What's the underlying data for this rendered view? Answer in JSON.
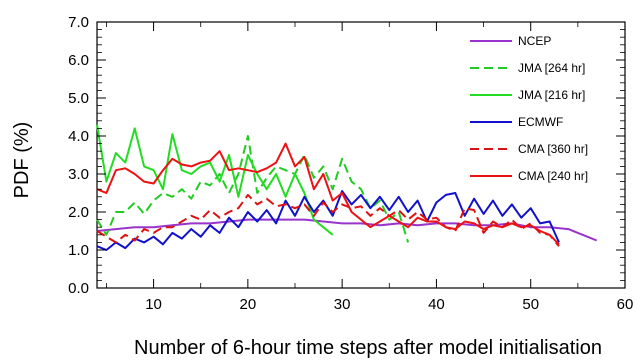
{
  "chart_data": {
    "type": "line",
    "title": "",
    "xlabel": "Number of 6-hour time steps after model initialisation",
    "ylabel": "PDF (%)",
    "xlim": [
      4,
      60
    ],
    "ylim": [
      0,
      7
    ],
    "xticks": [
      10,
      20,
      30,
      40,
      50,
      60
    ],
    "yticks": [
      0,
      1,
      2,
      3,
      4,
      5,
      6,
      7
    ],
    "xtick_labels": [
      "10",
      "20",
      "30",
      "40",
      "50",
      "60"
    ],
    "ytick_labels": [
      "0.0",
      "1.0",
      "2.0",
      "3.0",
      "4.0",
      "5.0",
      "6.0",
      "7.0"
    ],
    "grid": false,
    "legend_position": "top-right",
    "series": [
      {
        "name": "NCEP",
        "color": "#9933cc",
        "dash": "solid",
        "x": [
          4,
          6,
          8,
          10,
          12,
          14,
          16,
          18,
          20,
          22,
          24,
          26,
          28,
          30,
          32,
          34,
          36,
          38,
          40,
          42,
          44,
          46,
          48,
          50,
          52,
          54,
          55,
          56,
          57
        ],
        "y": [
          1.5,
          1.55,
          1.6,
          1.6,
          1.65,
          1.7,
          1.7,
          1.75,
          1.8,
          1.8,
          1.8,
          1.8,
          1.75,
          1.7,
          1.7,
          1.65,
          1.7,
          1.65,
          1.7,
          1.7,
          1.65,
          1.65,
          1.7,
          1.6,
          1.6,
          1.55,
          1.45,
          1.35,
          1.25
        ]
      },
      {
        "name": "JMA [264 hr]",
        "color": "#22cc22",
        "dash": "dashed",
        "x": [
          4,
          5,
          6,
          7,
          8,
          9,
          10,
          11,
          12,
          13,
          14,
          15,
          16,
          17,
          18,
          19,
          20,
          21,
          22,
          23,
          24,
          25,
          26,
          27,
          28,
          29,
          30,
          31,
          32,
          33,
          34,
          35,
          36,
          37
        ],
        "y": [
          1.8,
          1.4,
          2.0,
          2.0,
          2.25,
          1.95,
          2.3,
          2.5,
          2.4,
          2.6,
          2.35,
          2.8,
          2.7,
          3.0,
          2.5,
          3.0,
          4.0,
          2.5,
          2.9,
          3.2,
          3.1,
          3.0,
          3.5,
          2.9,
          3.2,
          2.6,
          3.4,
          2.8,
          2.6,
          2.1,
          2.3,
          1.8,
          2.0,
          1.2
        ]
      },
      {
        "name": "JMA [216 hr]",
        "color": "#22dd22",
        "dash": "solid",
        "x": [
          4,
          5,
          6,
          7,
          8,
          9,
          10,
          11,
          12,
          13,
          14,
          15,
          16,
          17,
          18,
          19,
          20,
          21,
          22,
          23,
          24,
          25,
          26,
          27,
          28,
          29
        ],
        "y": [
          4.3,
          2.8,
          3.55,
          3.3,
          4.2,
          3.2,
          3.1,
          2.6,
          4.05,
          3.1,
          3.0,
          3.2,
          3.3,
          2.8,
          3.5,
          2.4,
          3.5,
          3.0,
          2.6,
          3.0,
          2.4,
          3.0,
          2.5,
          1.8,
          1.6,
          1.4
        ]
      },
      {
        "name": "ECMWF",
        "color": "#1111cc",
        "dash": "solid",
        "x": [
          4,
          5,
          6,
          7,
          8,
          9,
          10,
          11,
          12,
          13,
          14,
          15,
          16,
          17,
          18,
          19,
          20,
          21,
          22,
          23,
          24,
          25,
          26,
          27,
          28,
          29,
          30,
          31,
          32,
          33,
          34,
          35,
          36,
          37,
          38,
          39,
          40,
          41,
          42,
          43,
          44,
          45,
          46,
          47,
          48,
          49,
          50,
          51,
          52,
          53
        ],
        "y": [
          1.1,
          1.0,
          1.2,
          1.05,
          1.3,
          1.2,
          1.35,
          1.15,
          1.45,
          1.3,
          1.55,
          1.35,
          1.65,
          1.45,
          1.85,
          1.6,
          2.0,
          1.75,
          2.05,
          1.7,
          2.3,
          1.9,
          2.4,
          2.0,
          2.3,
          1.9,
          2.55,
          2.2,
          2.45,
          2.1,
          2.4,
          2.05,
          2.4,
          2.0,
          2.3,
          1.75,
          2.25,
          2.45,
          2.5,
          1.9,
          2.35,
          1.95,
          2.3,
          1.9,
          2.2,
          1.85,
          2.1,
          1.7,
          1.75,
          1.2
        ]
      },
      {
        "name": "CMA [360 hr]",
        "color": "#dd1111",
        "dash": "dashed",
        "x": [
          4,
          5,
          6,
          7,
          8,
          9,
          10,
          11,
          12,
          13,
          14,
          15,
          16,
          17,
          18,
          19,
          20,
          21,
          22,
          23,
          24,
          25,
          26,
          27,
          28,
          29,
          30,
          31,
          32,
          33,
          34,
          35,
          36,
          37,
          38,
          39,
          40,
          41,
          42,
          43,
          44,
          45,
          46,
          47,
          48,
          49,
          50,
          51,
          52,
          53
        ],
        "y": [
          1.5,
          1.35,
          1.2,
          1.4,
          1.25,
          1.55,
          1.45,
          1.6,
          1.6,
          1.75,
          1.9,
          1.8,
          2.05,
          1.85,
          2.0,
          2.1,
          2.45,
          2.2,
          2.35,
          2.15,
          2.2,
          2.1,
          2.2,
          1.9,
          2.25,
          2.0,
          2.2,
          2.1,
          2.15,
          1.9,
          2.1,
          1.9,
          2.05,
          1.8,
          2.0,
          1.8,
          1.85,
          1.6,
          1.5,
          2.1,
          2.05,
          1.45,
          1.75,
          1.6,
          1.8,
          1.55,
          1.7,
          1.45,
          1.4,
          1.1
        ]
      },
      {
        "name": "CMA [240 hr]",
        "color": "#ee1111",
        "dash": "solid",
        "x": [
          4,
          5,
          6,
          7,
          8,
          9,
          10,
          11,
          12,
          13,
          14,
          15,
          16,
          17,
          18,
          19,
          20,
          21,
          22,
          23,
          24,
          25,
          26,
          27,
          28,
          29,
          30,
          31,
          32,
          33,
          34,
          35,
          36,
          37,
          38,
          39,
          40,
          41,
          42,
          43,
          44,
          45,
          46,
          47,
          48,
          49,
          50,
          51,
          52,
          53
        ],
        "y": [
          2.6,
          2.5,
          3.1,
          3.15,
          3.0,
          2.8,
          2.75,
          3.1,
          3.4,
          3.25,
          3.2,
          3.3,
          3.35,
          3.6,
          3.1,
          3.15,
          3.1,
          3.05,
          3.15,
          3.3,
          3.8,
          3.2,
          3.45,
          2.6,
          3.0,
          2.3,
          2.5,
          2.0,
          1.8,
          1.6,
          1.75,
          1.9,
          1.75,
          1.6,
          1.85,
          1.75,
          1.75,
          1.6,
          1.55,
          1.75,
          1.7,
          1.55,
          1.65,
          1.6,
          1.7,
          1.6,
          1.65,
          1.5,
          1.4,
          1.15
        ]
      }
    ]
  }
}
